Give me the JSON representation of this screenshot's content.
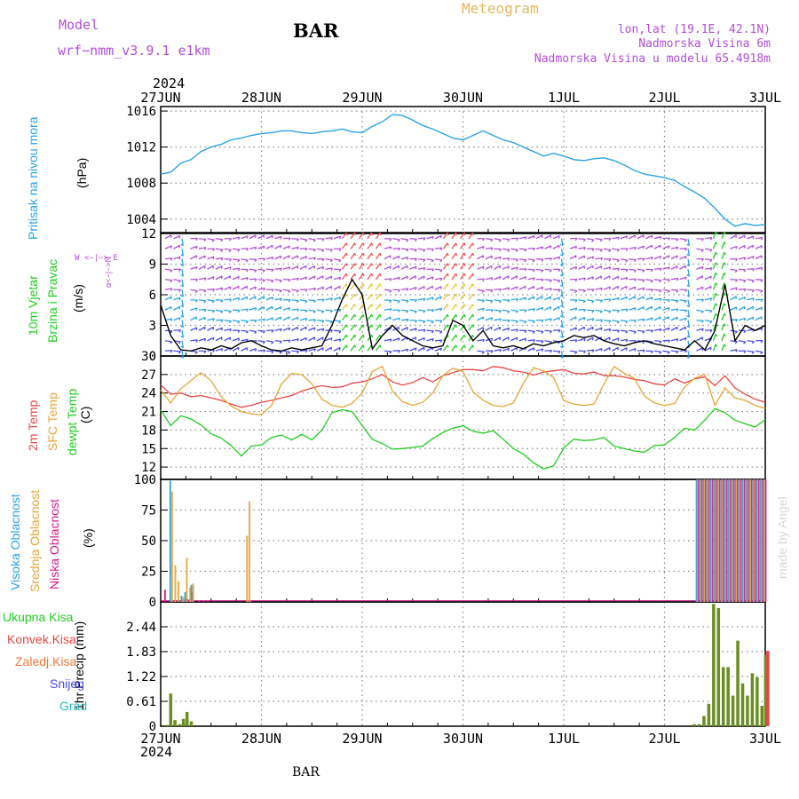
{
  "header": {
    "model_label": "Model",
    "model_name": "wrf−nmm_v3.9.1  e1km",
    "station": "BAR",
    "meteogram_title": "Meteogram",
    "lonlat": "lon,lat (19.1E, 42.1N)",
    "altitude": "Nadmorska Visina 6m",
    "model_altitude": "Nadmorska Visina u modelu 65.4918m",
    "year_top": "2024",
    "year_bottom": "2024",
    "footer_station": "BAR",
    "watermark": "made by Angel"
  },
  "colors": {
    "pressure": "#2aa3e6",
    "temp2m": "#e84646",
    "sfc": "#e6a63a",
    "dew": "#22cc22",
    "high_cloud": "#2aa3e6",
    "mid_cloud": "#e6a63a",
    "low_cloud": "#d81b8c",
    "precip_total": "#6b8e23",
    "precip_conv": "#e84646",
    "wind_speed": "#000000"
  },
  "panel_labels": {
    "pressure": {
      "name": "Pritisak na nivou mora",
      "unit": "(hPa)"
    },
    "wind": {
      "name1": "10m Vjetar",
      "name2": "Brzina i Pravac",
      "unit": "(m/s)",
      "compass": "W <−|−> E",
      "compass_v": "α<−|−>N"
    },
    "temp": {
      "l1": "2m Temp",
      "l2": "SFC Temp",
      "l3": "dewpt Temp",
      "unit": "(C)"
    },
    "cloud": {
      "l1": "Visoka Oblacnost",
      "l2": "Srednja Oblacnost",
      "l3": "Niska Oblacnost",
      "unit": "(%)"
    },
    "precip": {
      "unit": "1hr Precip (mm)",
      "legend": [
        "Ukupna Kisa",
        "Konvek.Kisa",
        "Zaledj.Kisa",
        "Snijeg",
        "Grad"
      ]
    }
  },
  "chart_data": [
    {
      "type": "line",
      "panel": "pressure",
      "x_labels": [
        "27JUN",
        "28JUN",
        "29JUN",
        "30JUN",
        "1JUL",
        "2JUL",
        "3JUL"
      ],
      "ylim": [
        1002.5,
        1016.5
      ],
      "yticks": [
        1004,
        1008,
        1012,
        1016
      ],
      "grid": true,
      "series": [
        {
          "values": [
            1009.0,
            1009.2,
            1010.2,
            1010.6,
            1011.5,
            1012.0,
            1012.3,
            1012.8,
            1013.0,
            1013.3,
            1013.5,
            1013.6,
            1013.8,
            1013.8,
            1013.6,
            1013.5,
            1013.7,
            1013.8,
            1014.0,
            1013.7,
            1013.6,
            1014.3,
            1014.8,
            1015.6,
            1015.5,
            1015.0,
            1014.4,
            1014.0,
            1013.5,
            1013.0,
            1012.8,
            1013.3,
            1013.8,
            1013.3,
            1012.8,
            1012.5,
            1012.0,
            1011.5,
            1011.0,
            1011.3,
            1011.0,
            1010.6,
            1010.5,
            1010.7,
            1010.8,
            1010.5,
            1010.0,
            1009.4,
            1009.0,
            1008.8,
            1008.6,
            1008.3,
            1007.6,
            1007.0,
            1006.3,
            1005.2,
            1004.0,
            1003.2,
            1003.5,
            1003.3,
            1003.4
          ]
        }
      ]
    },
    {
      "type": "line",
      "panel": "wind",
      "ylim": [
        0,
        12
      ],
      "yticks": [
        0,
        3,
        6,
        9,
        12
      ],
      "grid": true,
      "series": [
        {
          "values": [
            5.0,
            2.0,
            0.6,
            0.5,
            0.8,
            0.6,
            1.0,
            0.7,
            1.3,
            1.5,
            1.0,
            0.6,
            0.5,
            0.8,
            0.6,
            0.8,
            1.0,
            3.0,
            5.5,
            7.5,
            6.0,
            0.7,
            2.0,
            3.0,
            2.0,
            1.5,
            1.0,
            0.8,
            1.0,
            3.5,
            3.0,
            1.5,
            2.5,
            1.0,
            0.8,
            1.0,
            0.7,
            1.2,
            1.0,
            1.3,
            1.5,
            2.0,
            1.8,
            2.0,
            1.5,
            1.2,
            1.0,
            1.3,
            1.5,
            1.2,
            1.0,
            0.8,
            0.6,
            1.5,
            0.6,
            2.5,
            7.0,
            1.5,
            3.0,
            2.5,
            3.0
          ]
        }
      ]
    },
    {
      "type": "line",
      "panel": "temperature",
      "ylim": [
        10,
        30
      ],
      "yticks": [
        12,
        15,
        18,
        21,
        24,
        27,
        30
      ],
      "grid": true,
      "series": [
        {
          "values": [
            25.3,
            23.8,
            24.0,
            23.4,
            23.6,
            23.2,
            22.8,
            22.2,
            21.7,
            22.0,
            22.5,
            22.8,
            23.2,
            23.6,
            24.3,
            24.8,
            25.2,
            24.9,
            25.0,
            25.6,
            25.8,
            26.3,
            27.0,
            25.8,
            25.3,
            25.7,
            26.5,
            25.8,
            26.8,
            27.3,
            27.8,
            27.8,
            27.6,
            28.3,
            28.1,
            27.6,
            27.4,
            26.9,
            27.4,
            27.6,
            27.8,
            27.2,
            27.1,
            27.4,
            26.8,
            26.8,
            26.6,
            26.2,
            26.0,
            25.5,
            25.3,
            26.3,
            25.6,
            26.3,
            26.6,
            25.2,
            26.8,
            24.8,
            23.8,
            23.0,
            22.5
          ]
        },
        {
          "values": [
            24.5,
            22.4,
            24.7,
            26.0,
            27.3,
            26.0,
            23.4,
            21.9,
            21.0,
            20.6,
            20.5,
            22.0,
            25.5,
            27.2,
            27.0,
            25.5,
            23.0,
            22.0,
            21.7,
            22.3,
            24.0,
            27.5,
            28.3,
            24.3,
            22.6,
            22.0,
            22.5,
            24.0,
            26.8,
            28.0,
            27.5,
            24.2,
            22.8,
            22.0,
            21.8,
            22.4,
            25.6,
            28.1,
            27.6,
            26.5,
            22.8,
            22.2,
            22.0,
            22.2,
            25.5,
            28.3,
            27.2,
            26.4,
            23.5,
            22.4,
            22.0,
            22.3,
            25.0,
            26.4,
            27.0,
            22.0,
            24.8,
            23.2,
            22.8,
            22.0,
            21.5
          ]
        },
        {
          "values": [
            21.3,
            18.7,
            20.3,
            19.8,
            18.8,
            17.4,
            16.7,
            15.5,
            13.8,
            15.4,
            15.6,
            16.8,
            17.2,
            16.4,
            17.3,
            16.4,
            18.0,
            20.8,
            21.3,
            21.0,
            18.7,
            16.5,
            15.8,
            14.9,
            15.0,
            15.2,
            15.4,
            16.6,
            17.6,
            18.3,
            18.7,
            17.8,
            17.5,
            17.9,
            16.5,
            15.0,
            14.1,
            12.7,
            11.7,
            12.2,
            15.1,
            16.5,
            16.3,
            16.4,
            16.8,
            15.4,
            15.0,
            14.6,
            14.4,
            15.5,
            15.6,
            16.8,
            18.3,
            18.0,
            19.6,
            21.5,
            20.8,
            19.6,
            19.0,
            18.5,
            19.7
          ]
        }
      ]
    },
    {
      "type": "bar",
      "panel": "cloud",
      "ylim": [
        0,
        100
      ],
      "yticks": [
        0,
        25,
        50,
        75,
        100
      ],
      "grid": true,
      "x_fraction": [
        0.0,
        0.0145,
        0.02,
        0.025,
        0.033,
        0.039,
        0.0445,
        0.0495,
        0.056,
        0.064,
        0.071,
        0.1385,
        0.1425
      ],
      "series": [
        {
          "values": [
            0,
            99,
            0,
            0,
            5,
            8,
            0,
            14,
            0,
            0,
            0,
            0,
            0
          ]
        },
        {
          "values": [
            0,
            90,
            30,
            17,
            4,
            36,
            12,
            15,
            0,
            0,
            0,
            54,
            82
          ]
        },
        {
          "values": [
            10,
            1,
            0,
            1,
            0,
            2,
            8,
            0,
            1,
            1,
            1,
            1,
            1
          ]
        }
      ],
      "end_block": {
        "from_fraction": 0.885,
        "to_fraction": 1.0,
        "levels": [
          100,
          100,
          100
        ],
        "low": 2
      }
    },
    {
      "type": "bar",
      "panel": "precipitation",
      "ylim": [
        0,
        3.05
      ],
      "yticks": [
        0,
        0.61,
        1.22,
        1.83,
        2.44
      ],
      "grid": true,
      "x_fraction": [
        0.008,
        0.014,
        0.021,
        0.029,
        0.035,
        0.041,
        0.048,
        0.88,
        0.888,
        0.896,
        0.904,
        0.912,
        0.92,
        0.928,
        0.936,
        0.944,
        0.952,
        0.96,
        0.968,
        0.976,
        0.984,
        0.992,
        0.998
      ],
      "series": [
        {
          "values": [
            0.03,
            0.8,
            0.15,
            0.05,
            0.18,
            0.35,
            0.12,
            0.05,
            0.05,
            0.25,
            0.55,
            3.0,
            2.9,
            1.45,
            1.45,
            0.75,
            2.1,
            1.05,
            0.75,
            1.3,
            1.2,
            0.5,
            1.75
          ]
        },
        {
          "values": [
            0,
            0,
            0,
            0,
            0,
            0,
            0,
            0,
            0,
            0,
            0,
            0,
            0,
            0,
            0,
            0,
            0,
            0,
            0,
            0,
            0,
            0,
            1.85
          ]
        }
      ]
    }
  ]
}
